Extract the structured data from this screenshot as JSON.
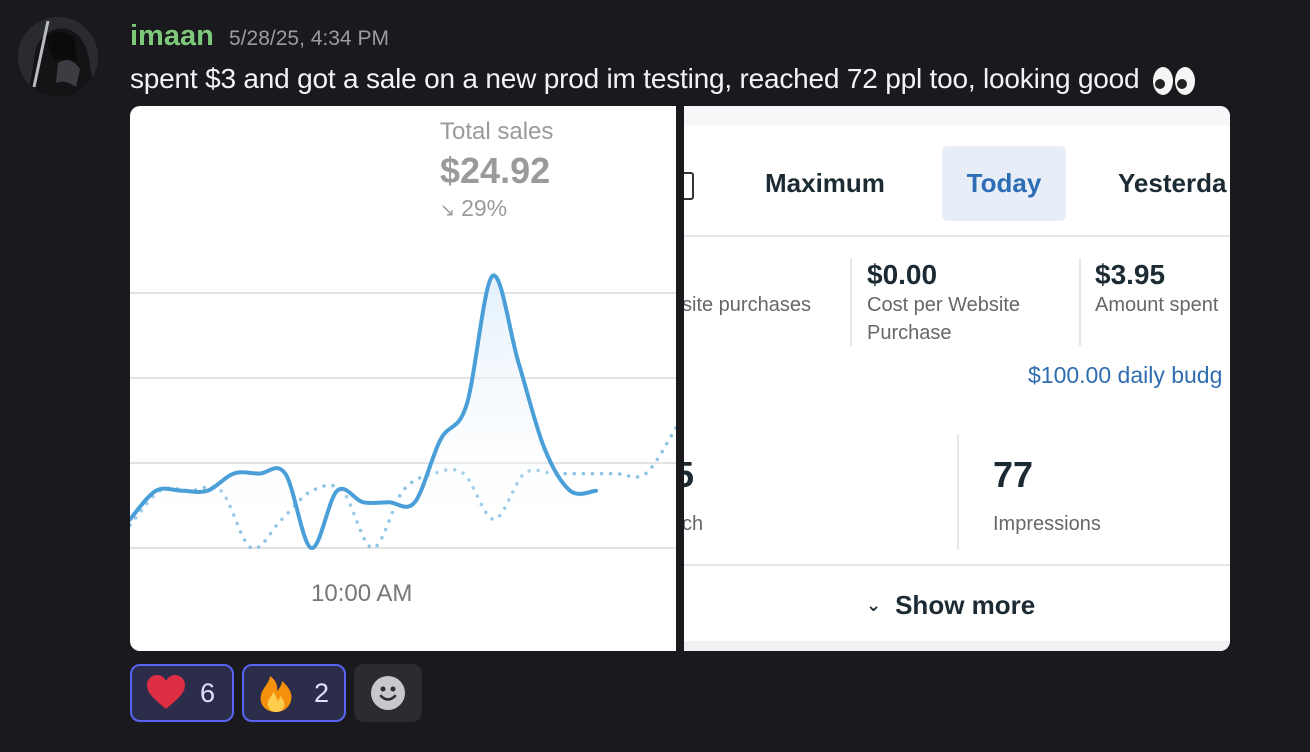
{
  "message": {
    "username": "imaan",
    "timestamp": "5/28/25, 4:34 PM",
    "text": "spent $3 and got a sale on a new prod im testing, reached 72 ppl too, looking good",
    "trailing_emoji": "eyes-emoji",
    "colors": {
      "username": "#7ec87a",
      "background": "#1a1a1e"
    }
  },
  "attachment_chart": {
    "title": "Total sales",
    "value": "$24.92",
    "change": "29%",
    "change_direction": "down",
    "x_label": "10:00 AM"
  },
  "chart_data": {
    "type": "line",
    "title": "Total sales",
    "xlabel": "",
    "ylabel": "",
    "x_tick_labels": [
      "10:00 AM"
    ],
    "grid": true,
    "series": [
      {
        "style": "solid",
        "color": "#4a9fd8",
        "values": [
          1.0,
          2.0,
          2.0,
          2.0,
          2.6,
          2.6,
          2.6,
          0.0,
          2.0,
          1.6,
          1.6,
          1.6,
          3.8,
          5.0,
          9.5,
          6.5,
          3.5,
          2.0,
          2.0
        ]
      },
      {
        "style": "dotted",
        "color": "#8cc4e6",
        "values": [
          0.8,
          2.0,
          2.0,
          2.0,
          0.0,
          1.0,
          2.0,
          2.0,
          0.0,
          2.0,
          2.6,
          2.6,
          1.0,
          2.6,
          2.6,
          2.6,
          2.6,
          2.6,
          4.2
        ]
      }
    ]
  },
  "attachment_ads": {
    "tabs": {
      "maximum": "Maximum",
      "today": "Today",
      "yesterday": "Yesterda"
    },
    "metrics": [
      {
        "value": "",
        "label": "site purchases"
      },
      {
        "value": "$0.00",
        "label_line1": "Cost per Website",
        "label_line2": "Purchase"
      },
      {
        "value": "$3.95",
        "label": "Amount spent"
      }
    ],
    "budget": "$100.00 daily budg",
    "reach": {
      "value": "5",
      "label": "ch"
    },
    "impressions": {
      "value": "77",
      "label": "Impressions"
    },
    "show_more": "Show more"
  },
  "reactions": [
    {
      "emoji": "heart-emoji",
      "count": "6"
    },
    {
      "emoji": "fire-emoji",
      "count": "2"
    }
  ]
}
